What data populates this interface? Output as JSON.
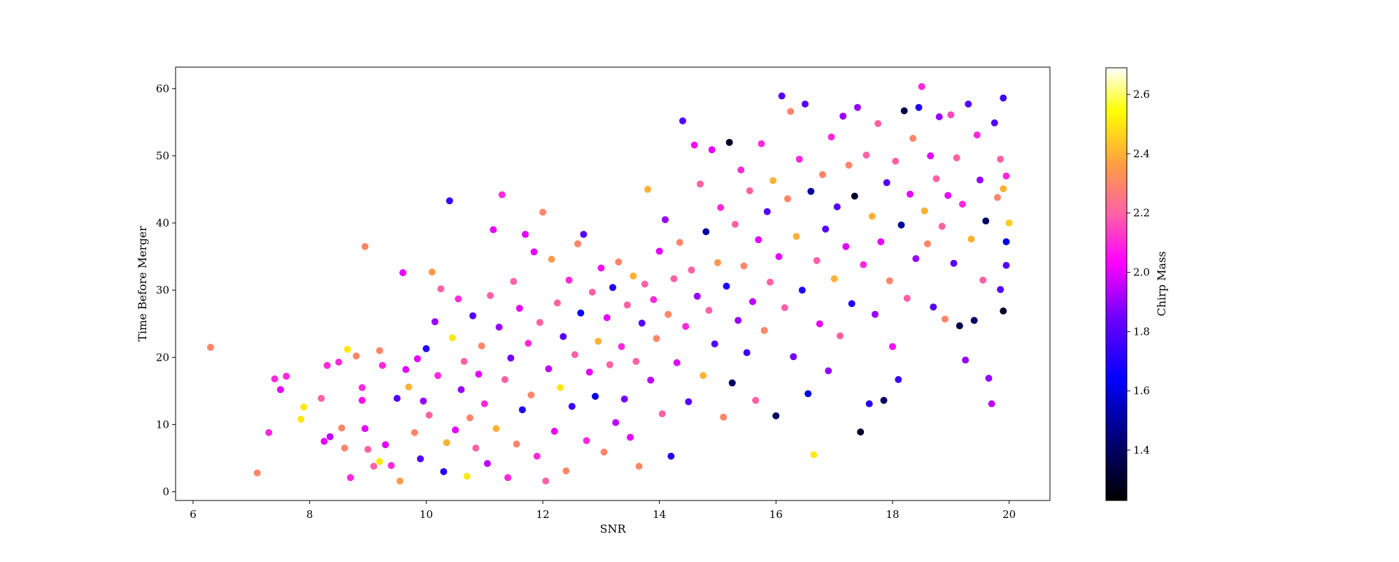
{
  "chart_data": {
    "type": "scatter",
    "title": "",
    "xlabel": "SNR",
    "ylabel": "Time Before Merger",
    "xlim": [
      5.7,
      20.7
    ],
    "ylim": [
      -1.3,
      63.2
    ],
    "xticks": [
      "6",
      "8",
      "10",
      "12",
      "14",
      "16",
      "18",
      "20"
    ],
    "yticks": [
      "0",
      "10",
      "20",
      "30",
      "40",
      "50",
      "60"
    ],
    "grid": false,
    "legend": "none",
    "colorbar": {
      "label": "Chirp Mass",
      "colormap": "plasma-like (black-blue-purple-pink-orange-yellow-white)",
      "range": [
        1.23,
        2.69
      ],
      "ticks": [
        "1.4",
        "1.6",
        "1.8",
        "2.0",
        "2.2",
        "2.4",
        "2.6"
      ]
    },
    "points": [
      [
        6.3,
        21.5,
        2.3
      ],
      [
        7.1,
        2.8,
        2.3
      ],
      [
        7.3,
        8.8,
        2.1
      ],
      [
        7.4,
        16.8,
        2.1
      ],
      [
        7.5,
        15.2,
        2.0
      ],
      [
        7.6,
        17.2,
        2.1
      ],
      [
        7.85,
        10.8,
        2.5
      ],
      [
        7.9,
        12.6,
        2.5
      ],
      [
        8.2,
        13.9,
        2.2
      ],
      [
        8.25,
        7.5,
        2.0
      ],
      [
        8.3,
        18.8,
        2.1
      ],
      [
        8.35,
        8.2,
        1.95
      ],
      [
        8.5,
        19.3,
        2.1
      ],
      [
        8.55,
        9.5,
        2.3
      ],
      [
        8.6,
        6.5,
        2.3
      ],
      [
        8.65,
        21.2,
        2.5
      ],
      [
        8.7,
        2.1,
        2.1
      ],
      [
        8.8,
        20.2,
        2.3
      ],
      [
        8.95,
        36.5,
        2.3
      ],
      [
        8.9,
        15.5,
        2.1
      ],
      [
        8.9,
        13.6,
        2.05
      ],
      [
        8.95,
        9.4,
        2.0
      ],
      [
        9.0,
        6.3,
        2.2
      ],
      [
        9.1,
        3.8,
        2.2
      ],
      [
        9.2,
        21.0,
        2.3
      ],
      [
        9.2,
        4.5,
        2.5
      ],
      [
        9.25,
        18.8,
        2.1
      ],
      [
        9.3,
        7.0,
        2.0
      ],
      [
        9.4,
        3.9,
        2.1
      ],
      [
        9.5,
        13.9,
        1.8
      ],
      [
        9.55,
        1.6,
        2.35
      ],
      [
        9.6,
        32.6,
        2.0
      ],
      [
        9.65,
        18.2,
        2.0
      ],
      [
        9.7,
        15.6,
        2.4
      ],
      [
        9.8,
        8.8,
        2.3
      ],
      [
        9.85,
        19.8,
        2.0
      ],
      [
        9.9,
        4.9,
        1.8
      ],
      [
        9.95,
        13.5,
        1.9
      ],
      [
        10.0,
        21.3,
        1.7
      ],
      [
        10.05,
        11.4,
        2.2
      ],
      [
        10.1,
        32.7,
        2.35
      ],
      [
        10.15,
        25.3,
        1.9
      ],
      [
        10.2,
        17.3,
        2.1
      ],
      [
        10.25,
        30.2,
        2.2
      ],
      [
        10.3,
        3.0,
        1.7
      ],
      [
        10.35,
        7.3,
        2.4
      ],
      [
        10.4,
        43.3,
        1.75
      ],
      [
        10.45,
        22.9,
        2.5
      ],
      [
        10.5,
        9.2,
        2.0
      ],
      [
        10.55,
        28.7,
        2.1
      ],
      [
        10.6,
        15.2,
        1.9
      ],
      [
        10.65,
        19.4,
        2.2
      ],
      [
        10.7,
        2.3,
        2.5
      ],
      [
        10.75,
        11.0,
        2.3
      ],
      [
        10.8,
        26.2,
        1.8
      ],
      [
        10.85,
        6.5,
        2.2
      ],
      [
        10.9,
        17.5,
        2.0
      ],
      [
        10.95,
        21.7,
        2.3
      ],
      [
        11.0,
        13.1,
        2.1
      ],
      [
        11.05,
        4.2,
        1.95
      ],
      [
        11.1,
        29.2,
        2.2
      ],
      [
        11.15,
        39.0,
        2.0
      ],
      [
        11.2,
        9.4,
        2.4
      ],
      [
        11.25,
        24.5,
        1.9
      ],
      [
        11.3,
        44.2,
        2.1
      ],
      [
        11.35,
        16.7,
        2.2
      ],
      [
        11.4,
        2.1,
        2.1
      ],
      [
        11.45,
        19.9,
        1.85
      ],
      [
        11.5,
        31.3,
        2.2
      ],
      [
        11.55,
        7.1,
        2.3
      ],
      [
        11.6,
        27.3,
        2.0
      ],
      [
        11.65,
        12.2,
        1.7
      ],
      [
        11.7,
        38.3,
        2.0
      ],
      [
        11.75,
        22.1,
        2.1
      ],
      [
        11.8,
        14.4,
        2.3
      ],
      [
        11.85,
        35.7,
        2.0
      ],
      [
        11.9,
        5.3,
        2.1
      ],
      [
        11.95,
        25.2,
        2.2
      ],
      [
        12.0,
        41.6,
        2.3
      ],
      [
        12.05,
        1.6,
        2.2
      ],
      [
        12.1,
        18.3,
        1.95
      ],
      [
        12.15,
        34.6,
        2.35
      ],
      [
        12.2,
        9.0,
        2.0
      ],
      [
        12.25,
        28.1,
        2.2
      ],
      [
        12.3,
        15.5,
        2.5
      ],
      [
        12.35,
        23.1,
        1.8
      ],
      [
        12.4,
        3.1,
        2.3
      ],
      [
        12.45,
        31.5,
        2.1
      ],
      [
        12.5,
        12.7,
        1.75
      ],
      [
        12.55,
        20.4,
        2.2
      ],
      [
        12.6,
        36.9,
        2.3
      ],
      [
        12.65,
        26.6,
        1.65
      ],
      [
        12.7,
        38.3,
        1.8
      ],
      [
        12.75,
        7.6,
        2.1
      ],
      [
        12.8,
        17.8,
        2.0
      ],
      [
        12.85,
        29.7,
        2.2
      ],
      [
        12.9,
        14.2,
        1.6
      ],
      [
        12.95,
        22.4,
        2.4
      ],
      [
        13.0,
        33.3,
        2.05
      ],
      [
        13.05,
        5.9,
        2.3
      ],
      [
        13.1,
        25.9,
        2.0
      ],
      [
        13.15,
        18.9,
        2.2
      ],
      [
        13.2,
        30.4,
        1.7
      ],
      [
        13.25,
        10.3,
        1.95
      ],
      [
        13.3,
        34.2,
        2.3
      ],
      [
        13.35,
        21.6,
        2.1
      ],
      [
        13.4,
        13.8,
        1.85
      ],
      [
        13.45,
        27.8,
        2.2
      ],
      [
        13.5,
        8.1,
        2.0
      ],
      [
        13.55,
        32.1,
        2.4
      ],
      [
        13.6,
        19.4,
        2.2
      ],
      [
        13.65,
        3.8,
        2.3
      ],
      [
        13.7,
        25.1,
        1.8
      ],
      [
        13.75,
        30.9,
        2.2
      ],
      [
        13.8,
        45.0,
        2.4
      ],
      [
        13.85,
        16.6,
        1.95
      ],
      [
        13.9,
        28.6,
        2.1
      ],
      [
        13.95,
        22.8,
        2.3
      ],
      [
        14.0,
        35.8,
        2.0
      ],
      [
        14.05,
        11.6,
        2.2
      ],
      [
        14.1,
        40.5,
        1.9
      ],
      [
        14.15,
        26.4,
        2.3
      ],
      [
        14.2,
        5.3,
        1.7
      ],
      [
        14.25,
        31.7,
        2.2
      ],
      [
        14.3,
        19.2,
        2.0
      ],
      [
        14.35,
        37.1,
        2.3
      ],
      [
        14.4,
        55.2,
        1.8
      ],
      [
        14.45,
        24.6,
        2.1
      ],
      [
        14.5,
        13.4,
        1.8
      ],
      [
        14.55,
        33.0,
        2.2
      ],
      [
        14.6,
        51.6,
        2.05
      ],
      [
        14.65,
        29.1,
        1.9
      ],
      [
        14.7,
        45.8,
        2.2
      ],
      [
        14.75,
        17.3,
        2.4
      ],
      [
        14.8,
        38.7,
        1.5
      ],
      [
        14.85,
        27.0,
        2.2
      ],
      [
        14.9,
        50.9,
        2.0
      ],
      [
        14.95,
        22.0,
        1.8
      ],
      [
        15.0,
        34.1,
        2.35
      ],
      [
        15.05,
        42.3,
        2.1
      ],
      [
        15.1,
        11.1,
        2.3
      ],
      [
        15.15,
        30.6,
        1.7
      ],
      [
        15.2,
        52.0,
        1.3
      ],
      [
        15.25,
        16.2,
        1.4
      ],
      [
        15.3,
        39.8,
        2.2
      ],
      [
        15.35,
        25.5,
        1.9
      ],
      [
        15.4,
        47.9,
        2.1
      ],
      [
        15.45,
        33.6,
        2.3
      ],
      [
        15.5,
        20.7,
        1.75
      ],
      [
        15.55,
        44.8,
        2.2
      ],
      [
        15.6,
        28.3,
        1.95
      ],
      [
        15.65,
        13.6,
        2.2
      ],
      [
        15.7,
        37.5,
        2.0
      ],
      [
        15.75,
        51.8,
        2.1
      ],
      [
        15.8,
        24.0,
        2.3
      ],
      [
        15.85,
        41.7,
        1.8
      ],
      [
        15.9,
        31.2,
        2.2
      ],
      [
        15.95,
        46.3,
        2.4
      ],
      [
        16.0,
        11.3,
        1.4
      ],
      [
        16.05,
        35.0,
        2.0
      ],
      [
        16.1,
        58.9,
        1.8
      ],
      [
        16.15,
        27.4,
        2.2
      ],
      [
        16.2,
        43.6,
        2.3
      ],
      [
        16.25,
        56.6,
        2.3
      ],
      [
        16.3,
        20.1,
        1.85
      ],
      [
        16.35,
        38.0,
        2.4
      ],
      [
        16.4,
        49.5,
        2.1
      ],
      [
        16.45,
        30.0,
        1.7
      ],
      [
        16.5,
        57.7,
        1.8
      ],
      [
        16.55,
        14.6,
        1.6
      ],
      [
        16.6,
        44.7,
        1.5
      ],
      [
        16.65,
        5.5,
        2.5
      ],
      [
        16.7,
        34.4,
        2.2
      ],
      [
        16.75,
        25.0,
        2.0
      ],
      [
        16.8,
        47.2,
        2.3
      ],
      [
        16.85,
        39.1,
        1.8
      ],
      [
        16.9,
        18.0,
        1.9
      ],
      [
        16.95,
        52.8,
        2.1
      ],
      [
        17.0,
        31.7,
        2.4
      ],
      [
        17.05,
        42.4,
        1.8
      ],
      [
        17.1,
        23.2,
        2.2
      ],
      [
        17.15,
        55.9,
        1.9
      ],
      [
        17.2,
        36.5,
        2.0
      ],
      [
        17.25,
        48.6,
        2.3
      ],
      [
        17.3,
        28.0,
        1.7
      ],
      [
        17.35,
        44.0,
        1.3
      ],
      [
        17.4,
        57.2,
        1.9
      ],
      [
        17.45,
        8.9,
        1.3
      ],
      [
        17.5,
        33.8,
        2.1
      ],
      [
        17.55,
        50.1,
        2.2
      ],
      [
        17.6,
        13.1,
        1.7
      ],
      [
        17.65,
        41.0,
        2.4
      ],
      [
        17.7,
        26.4,
        1.9
      ],
      [
        17.75,
        54.8,
        2.2
      ],
      [
        17.8,
        37.2,
        2.0
      ],
      [
        17.85,
        13.6,
        1.4
      ],
      [
        17.9,
        46.0,
        1.8
      ],
      [
        17.95,
        31.4,
        2.3
      ],
      [
        18.0,
        21.6,
        2.05
      ],
      [
        18.05,
        49.2,
        2.2
      ],
      [
        18.1,
        16.7,
        1.75
      ],
      [
        18.15,
        39.7,
        1.5
      ],
      [
        18.2,
        56.7,
        1.35
      ],
      [
        18.25,
        28.8,
        2.2
      ],
      [
        18.3,
        44.3,
        2.0
      ],
      [
        18.35,
        52.6,
        2.3
      ],
      [
        18.4,
        34.7,
        1.9
      ],
      [
        18.45,
        57.2,
        1.7
      ],
      [
        18.5,
        60.3,
        2.1
      ],
      [
        18.55,
        41.8,
        2.4
      ],
      [
        18.6,
        36.9,
        2.3
      ],
      [
        18.65,
        50.0,
        2.0
      ],
      [
        18.7,
        27.5,
        1.8
      ],
      [
        18.75,
        46.6,
        2.2
      ],
      [
        18.8,
        55.8,
        1.9
      ],
      [
        18.85,
        39.5,
        2.2
      ],
      [
        18.9,
        25.7,
        2.3
      ],
      [
        18.95,
        44.1,
        2.0
      ],
      [
        19.0,
        56.1,
        2.15
      ],
      [
        19.05,
        34.0,
        1.8
      ],
      [
        19.1,
        49.7,
        2.2
      ],
      [
        19.15,
        24.7,
        1.35
      ],
      [
        19.2,
        42.8,
        2.1
      ],
      [
        19.25,
        19.6,
        1.9
      ],
      [
        19.3,
        57.7,
        1.8
      ],
      [
        19.35,
        37.6,
        2.4
      ],
      [
        19.4,
        25.5,
        1.4
      ],
      [
        19.45,
        53.1,
        2.1
      ],
      [
        19.5,
        46.4,
        1.9
      ],
      [
        19.55,
        31.5,
        2.2
      ],
      [
        19.6,
        40.3,
        1.4
      ],
      [
        19.65,
        16.9,
        1.9
      ],
      [
        19.7,
        13.1,
        1.95
      ],
      [
        19.75,
        54.9,
        1.8
      ],
      [
        19.8,
        43.8,
        2.3
      ],
      [
        19.85,
        30.1,
        1.8
      ],
      [
        19.9,
        58.6,
        1.75
      ],
      [
        19.9,
        26.9,
        1.3
      ],
      [
        19.95,
        47.0,
        2.1
      ],
      [
        19.95,
        37.2,
        1.6
      ],
      [
        20.0,
        40.0,
        2.45
      ],
      [
        19.95,
        33.7,
        1.8
      ],
      [
        19.85,
        49.5,
        2.2
      ],
      [
        19.9,
        45.1,
        2.4
      ]
    ]
  }
}
